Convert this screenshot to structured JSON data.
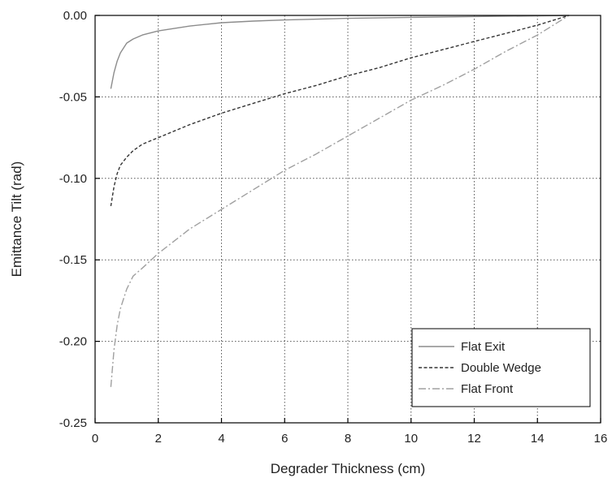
{
  "chart_data": {
    "type": "line",
    "xlabel": "Degrader Thickness (cm)",
    "ylabel": "Emittance Tilt (rad)",
    "xlim": [
      0,
      16
    ],
    "ylim": [
      -0.25,
      0.0
    ],
    "x_ticks": [
      0,
      2,
      4,
      6,
      8,
      10,
      12,
      14,
      16
    ],
    "y_ticks": [
      0.0,
      -0.05,
      -0.1,
      -0.15,
      -0.2,
      -0.25
    ],
    "x_tick_labels": [
      "0",
      "2",
      "4",
      "6",
      "8",
      "10",
      "12",
      "14",
      "16"
    ],
    "y_tick_labels": [
      "0.00",
      "-0.05",
      "-0.10",
      "-0.15",
      "-0.20",
      "-0.25"
    ],
    "grid": true,
    "legend_position": "lower-right",
    "series": [
      {
        "name": "Flat Exit",
        "color": "#8c8c8c",
        "dash": "solid",
        "x": [
          0.5,
          0.6,
          0.7,
          0.8,
          1.0,
          1.2,
          1.5,
          2.0,
          2.5,
          3.0,
          4.0,
          5.0,
          6.0,
          8.0,
          10.0,
          12.0,
          14.0,
          15.0
        ],
        "y": [
          -0.045,
          -0.035,
          -0.028,
          -0.023,
          -0.017,
          -0.0145,
          -0.012,
          -0.0095,
          -0.008,
          -0.0065,
          -0.0045,
          -0.0035,
          -0.0028,
          -0.0018,
          -0.0012,
          -0.0007,
          -0.0003,
          0.0
        ]
      },
      {
        "name": "Double Wedge",
        "color": "#333333",
        "dash": "dashed",
        "x": [
          0.5,
          0.6,
          0.7,
          0.8,
          1.0,
          1.2,
          1.5,
          2.0,
          3.0,
          4.0,
          5.0,
          6.0,
          7.0,
          8.0,
          9.0,
          10.0,
          11.0,
          12.0,
          13.0,
          14.0,
          15.0
        ],
        "y": [
          -0.117,
          -0.105,
          -0.097,
          -0.092,
          -0.087,
          -0.083,
          -0.079,
          -0.075,
          -0.067,
          -0.06,
          -0.054,
          -0.048,
          -0.043,
          -0.037,
          -0.032,
          -0.026,
          -0.021,
          -0.016,
          -0.011,
          -0.006,
          0.0
        ]
      },
      {
        "name": "Flat Front",
        "color": "#a0a0a0",
        "dash": "dashdot",
        "x": [
          0.5,
          0.6,
          0.7,
          0.8,
          1.0,
          1.2,
          1.5,
          2.0,
          3.0,
          4.0,
          5.0,
          6.0,
          7.0,
          8.0,
          9.0,
          10.0,
          11.0,
          12.0,
          13.0,
          14.0,
          15.0
        ],
        "y": [
          -0.228,
          -0.205,
          -0.19,
          -0.18,
          -0.168,
          -0.16,
          -0.155,
          -0.146,
          -0.131,
          -0.119,
          -0.107,
          -0.095,
          -0.085,
          -0.074,
          -0.063,
          -0.052,
          -0.043,
          -0.033,
          -0.022,
          -0.012,
          0.0
        ]
      }
    ]
  }
}
